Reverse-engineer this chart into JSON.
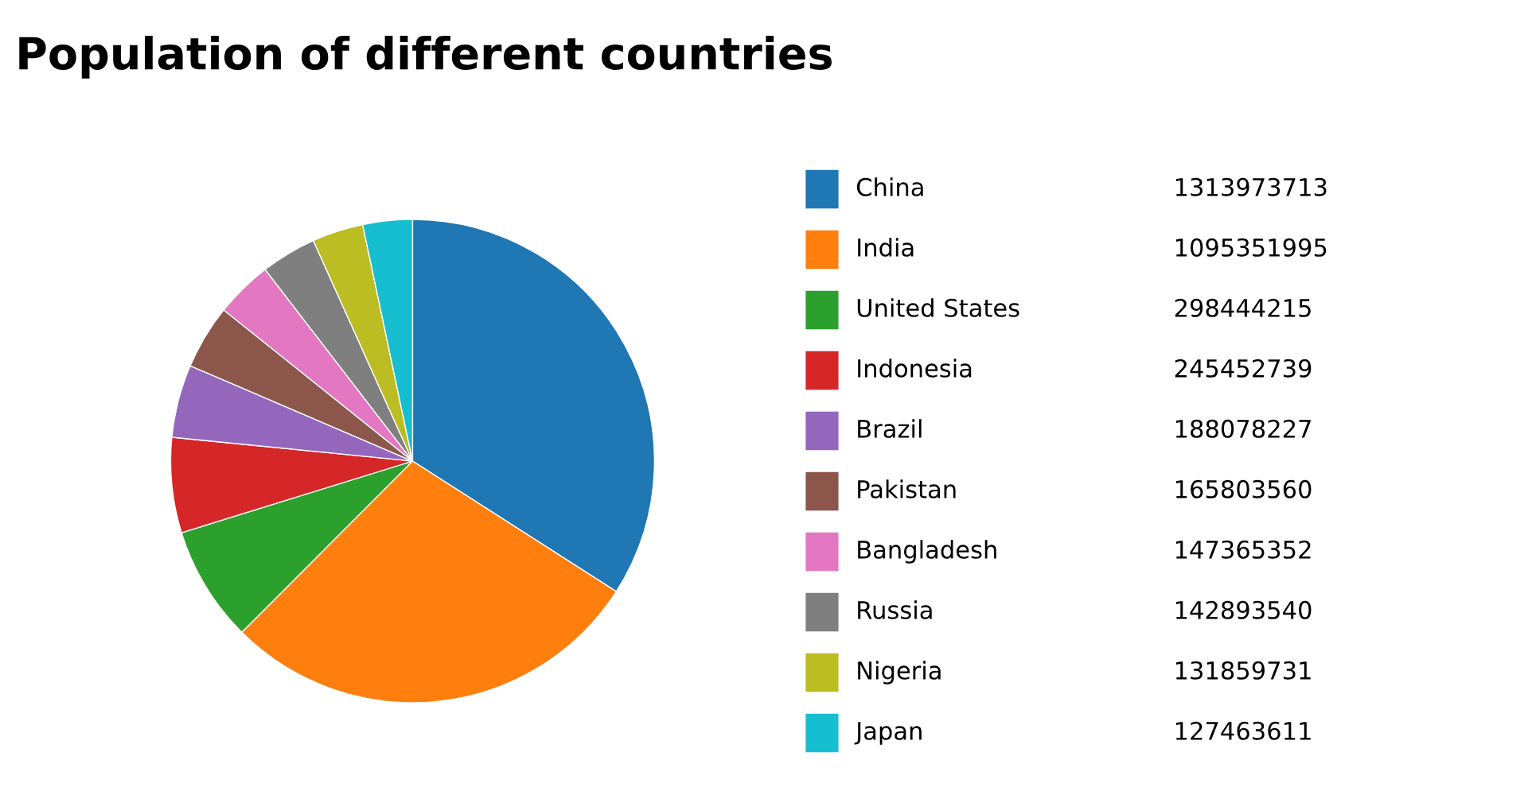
{
  "chart_data": {
    "type": "pie",
    "title": "Population of different countries",
    "categories": [
      "China",
      "India",
      "United States",
      "Indonesia",
      "Brazil",
      "Pakistan",
      "Bangladesh",
      "Russia",
      "Nigeria",
      "Japan"
    ],
    "values": [
      1313973713,
      1095351995,
      298444215,
      245452739,
      188078227,
      165803560,
      147365352,
      142893540,
      131859731,
      127463611
    ],
    "colors": [
      "#1f77b4",
      "#ff7f0e",
      "#2ca02c",
      "#d62728",
      "#9467bd",
      "#8c564b",
      "#e377c2",
      "#7f7f7f",
      "#bcbd22",
      "#17becf"
    ],
    "legend": "right",
    "data_labels": true
  }
}
